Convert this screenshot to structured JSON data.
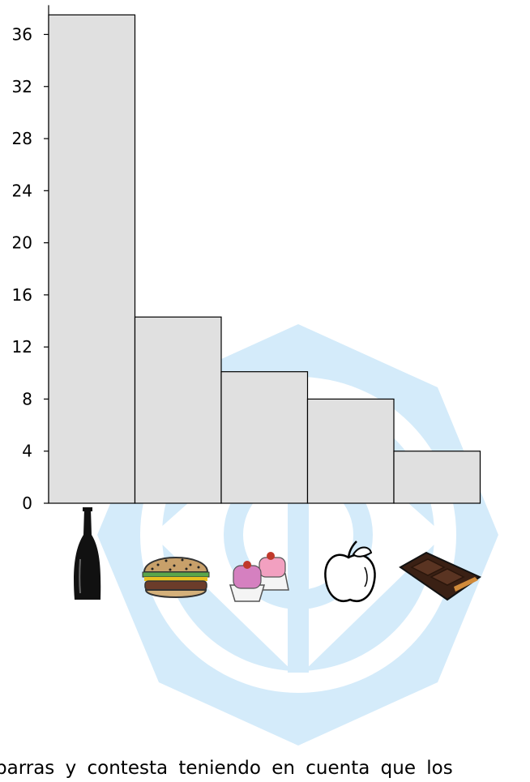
{
  "chart_data": {
    "type": "bar",
    "categories": [
      "soda-bottle",
      "hamburger",
      "pastries",
      "apple",
      "chocolate-bar"
    ],
    "values": [
      37.5,
      14.3,
      10.1,
      8.0,
      4.0
    ],
    "yticks": [
      "0",
      "4",
      "8",
      "12",
      "16",
      "20",
      "24",
      "28",
      "32",
      "36"
    ],
    "ylim": [
      0,
      38
    ],
    "bar_color": "#e0e0e0",
    "grid": false
  },
  "caption": "barras y contesta teniendo en cuenta que los",
  "watermark_color": "#d4ebfa",
  "icons": [
    "soda-bottle-icon",
    "hamburger-icon",
    "pastries-icon",
    "apple-icon",
    "chocolate-bar-icon"
  ]
}
